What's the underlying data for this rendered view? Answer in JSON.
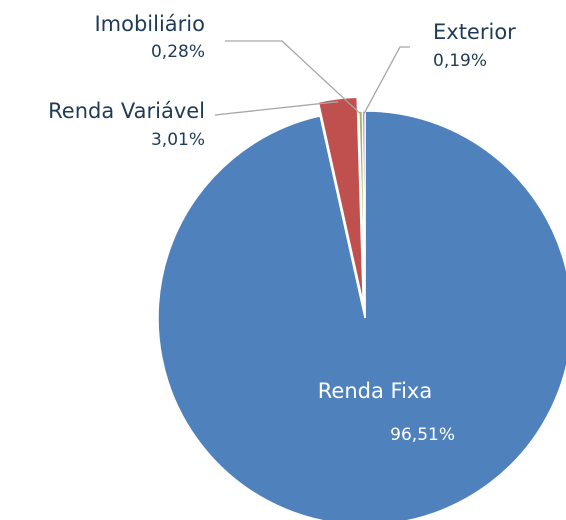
{
  "chart_data": {
    "type": "pie",
    "categories": [
      "Renda Fixa",
      "Renda Variável",
      "Imobiliário",
      "Exterior"
    ],
    "values": [
      96.51,
      3.01,
      0.28,
      0.19
    ],
    "value_labels": [
      "96,51%",
      "3,01%",
      "0,28%",
      "0,19%"
    ],
    "colors": [
      "#4f81bd",
      "#c0504d",
      "#9bbb59",
      "#8064a2"
    ],
    "exploded": "Renda Variável"
  }
}
